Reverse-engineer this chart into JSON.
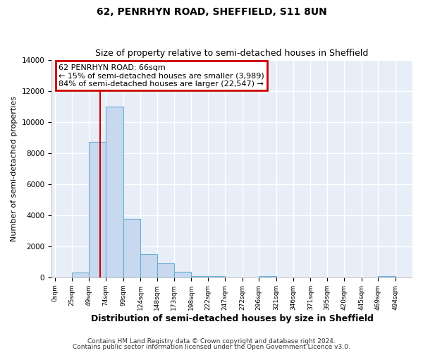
{
  "title": "62, PENRHYN ROAD, SHEFFIELD, S11 8UN",
  "subtitle": "Size of property relative to semi-detached houses in Sheffield",
  "xlabel": "Distribution of semi-detached houses by size in Sheffield",
  "ylabel": "Number of semi-detached properties",
  "bar_left_edges": [
    0,
    25,
    49,
    74,
    99,
    124,
    148,
    173,
    198,
    222,
    247,
    272,
    296,
    321,
    346,
    371,
    395,
    420,
    445,
    469
  ],
  "bar_widths": [
    25,
    24,
    25,
    25,
    25,
    24,
    25,
    25,
    24,
    25,
    25,
    24,
    25,
    25,
    25,
    24,
    25,
    25,
    24,
    25
  ],
  "bar_heights": [
    0,
    300,
    8700,
    11000,
    3750,
    1500,
    900,
    375,
    100,
    75,
    0,
    0,
    75,
    0,
    0,
    0,
    0,
    0,
    0,
    100
  ],
  "bar_color": "#c8d9ef",
  "bar_edge_color": "#6aaed6",
  "property_size": 66,
  "marker_line_color": "#cc0000",
  "annotation_box_facecolor": "#ffffff",
  "annotation_box_edgecolor": "#cc0000",
  "annotation_text_line1": "62 PENRHYN ROAD: 66sqm",
  "annotation_text_line2": "← 15% of semi-detached houses are smaller (3,989)",
  "annotation_text_line3": "84% of semi-detached houses are larger (22,547) →",
  "ylim": [
    0,
    14000
  ],
  "xlim": [
    -5,
    519
  ],
  "xtick_labels": [
    "0sqm",
    "25sqm",
    "49sqm",
    "74sqm",
    "99sqm",
    "124sqm",
    "148sqm",
    "173sqm",
    "198sqm",
    "222sqm",
    "247sqm",
    "272sqm",
    "296sqm",
    "321sqm",
    "346sqm",
    "371sqm",
    "395sqm",
    "420sqm",
    "445sqm",
    "469sqm",
    "494sqm"
  ],
  "xtick_positions": [
    0,
    25,
    49,
    74,
    99,
    124,
    148,
    173,
    198,
    222,
    247,
    272,
    296,
    321,
    346,
    371,
    395,
    420,
    445,
    469,
    494
  ],
  "footnote_line1": "Contains HM Land Registry data © Crown copyright and database right 2024.",
  "footnote_line2": "Contains public sector information licensed under the Open Government Licence v3.0.",
  "background_color": "#ffffff",
  "plot_background_color": "#e8eef8",
  "grid_color": "#ffffff",
  "title_fontsize": 10,
  "subtitle_fontsize": 9,
  "xlabel_fontsize": 9,
  "ylabel_fontsize": 8,
  "annotation_fontsize": 8,
  "tick_fontsize": 6.5,
  "footnote_fontsize": 6.5
}
